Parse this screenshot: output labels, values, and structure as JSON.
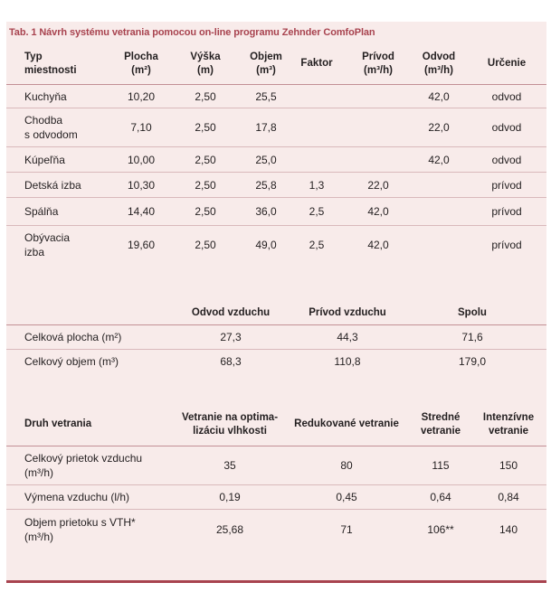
{
  "caption": "Tab. 1 Návrh systému vetrania pomocou on-line programu Zehnder ComfoPlan",
  "rooms": {
    "headers": {
      "type": [
        "Typ",
        "miestnosti"
      ],
      "area": [
        "Plocha",
        "(m²)"
      ],
      "height": [
        "Výška",
        "(m)"
      ],
      "volume": [
        "Objem",
        "(m³)"
      ],
      "factor": [
        "Faktor"
      ],
      "supply": [
        "Prívod",
        "(m³/h)"
      ],
      "exhaust": [
        "Odvod",
        "(m³/h)"
      ],
      "purpose": [
        "Určenie"
      ]
    },
    "rows": [
      {
        "type": [
          "Kuchyňa"
        ],
        "area": "10,20",
        "height": "2,50",
        "volume": "25,5",
        "factor": "",
        "supply": "",
        "exhaust": "42,0",
        "purpose": "odvod"
      },
      {
        "type": [
          "Chodba",
          "s odvodom"
        ],
        "area": "7,10",
        "height": "2,50",
        "volume": "17,8",
        "factor": "",
        "supply": "",
        "exhaust": "22,0",
        "purpose": "odvod"
      },
      {
        "type": [
          "Kúpeľňa"
        ],
        "area": "10,00",
        "height": "2,50",
        "volume": "25,0",
        "factor": "",
        "supply": "",
        "exhaust": "42,0",
        "purpose": "odvod"
      },
      {
        "type": [
          "Detská izba"
        ],
        "area": "10,30",
        "height": "2,50",
        "volume": "25,8",
        "factor": "1,3",
        "supply": "22,0",
        "exhaust": "",
        "purpose": "prívod"
      },
      {
        "type": [
          "Spálňa"
        ],
        "area": "14,40",
        "height": "2,50",
        "volume": "36,0",
        "factor": "2,5",
        "supply": "42,0",
        "exhaust": "",
        "purpose": "prívod"
      },
      {
        "type": [
          "Obývacia",
          "izba"
        ],
        "area": "19,60",
        "height": "2,50",
        "volume": "49,0",
        "factor": "2,5",
        "supply": "42,0",
        "exhaust": "",
        "purpose": "prívod"
      }
    ]
  },
  "totals": {
    "headers": [
      "",
      "Odvod vzduchu",
      "Prívod vzduchu",
      "Spolu"
    ],
    "rows": [
      {
        "label": [
          "Celková plocha (m²)"
        ],
        "values": [
          "27,3",
          "44,3",
          "71,6"
        ]
      },
      {
        "label": [
          "Celkový objem (m³)"
        ],
        "values": [
          "68,3",
          "110,8",
          "179,0"
        ]
      }
    ]
  },
  "ventilation": {
    "headers": [
      [
        "Druh vetrania"
      ],
      [
        "Vetranie na optima-",
        "lizáciu vlhkosti"
      ],
      [
        "Redukované vetranie"
      ],
      [
        "Stredné",
        "vetranie"
      ],
      [
        "Intenzívne",
        "vetranie"
      ]
    ],
    "rows": [
      {
        "label": [
          "Celkový prietok vzduchu",
          "(m³/h)"
        ],
        "values": [
          "35",
          "80",
          "115",
          "150"
        ]
      },
      {
        "label": [
          "Výmena vzduchu (l/h)"
        ],
        "values": [
          "0,19",
          "0,45",
          "0,64",
          "0,84"
        ]
      },
      {
        "label": [
          "Objem prietoku s VTH*",
          "(m³/h)"
        ],
        "values": [
          "25,68",
          "71",
          "106**",
          "140"
        ]
      }
    ]
  },
  "colors": {
    "accent": "#a8434f",
    "panel": "#f8ebea",
    "rule": "#d9b9bb"
  }
}
